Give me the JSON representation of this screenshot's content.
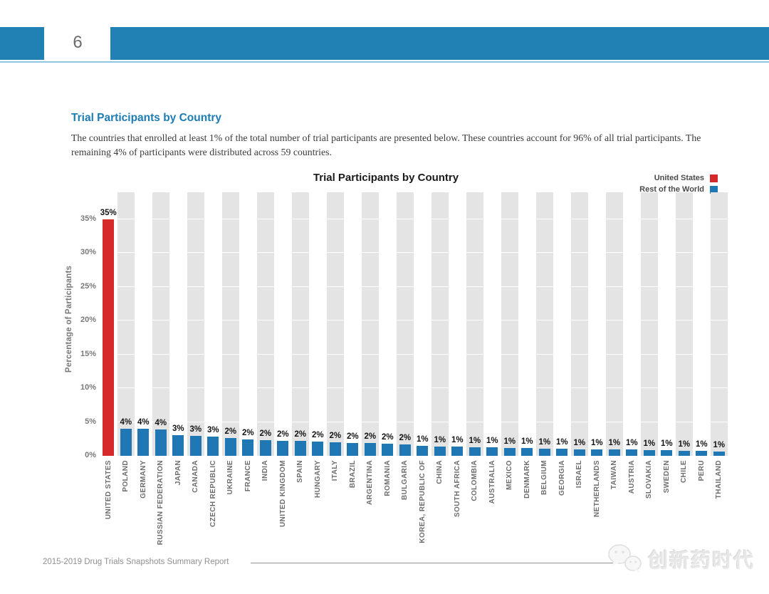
{
  "page": {
    "number": "6",
    "footer": "2015-2019 Drug Trials Snapshots Summary Report",
    "watermark_text": "创新药时代"
  },
  "intro": {
    "heading": "Trial Participants by Country",
    "body": "The countries that enrolled at least 1% of the total number of trial participants are presented below. These countries account for 96% of all trial participants. The remaining 4% of participants were distributed across 59 countries."
  },
  "colors": {
    "header_blue": "#2181b5",
    "heading_blue": "#1c7cb5",
    "us_red": "#d42a2b",
    "world_blue": "#1f77b4",
    "stripe_gray": "#e4e4e4"
  },
  "chart_data": {
    "type": "bar",
    "title": "Trial Participants by Country",
    "xlabel": "",
    "ylabel": "Percentage of Participants",
    "ylim": [
      0,
      39
    ],
    "yticks": [
      0,
      5,
      10,
      15,
      20,
      25,
      30,
      35
    ],
    "ytick_labels": [
      "0%",
      "5%",
      "10%",
      "15%",
      "20%",
      "25%",
      "30%",
      "35%"
    ],
    "grid": "white horizontal gridlines over alternating light-gray column stripes",
    "legend_position": "top-right",
    "legend": [
      {
        "label": "United States",
        "color": "#d42a2b"
      },
      {
        "label": "Rest of the World",
        "color": "#1f77b4"
      }
    ],
    "categories": [
      "UNITED STATES",
      "POLAND",
      "GERMANY",
      "RUSSIAN FEDERATION",
      "JAPAN",
      "CANADA",
      "CZECH REPUBLIC",
      "UKRAINE",
      "FRANCE",
      "INDIA",
      "UNITED KINGDOM",
      "SPAIN",
      "HUNGARY",
      "ITALY",
      "BRAZIL",
      "ARGENTINA",
      "ROMANIA",
      "BULGARIA",
      "KOREA, REPUBLIC OF",
      "CHINA",
      "SOUTH AFRICA",
      "COLOMBIA",
      "AUSTRALIA",
      "MEXICO",
      "DENMARK",
      "BELGIUM",
      "GEORGIA",
      "ISRAEL",
      "NETHERLANDS",
      "TAIWAN",
      "AUSTRIA",
      "SLOVAKIA",
      "SWEDEN",
      "CHILE",
      "PERU",
      "THAILAND"
    ],
    "values": [
      35,
      4,
      4,
      4,
      3,
      3,
      3,
      2,
      2,
      2,
      2,
      2,
      2,
      2,
      2,
      2,
      2,
      2,
      1,
      1,
      1,
      1,
      1,
      1,
      1,
      1,
      1,
      1,
      1,
      1,
      1,
      1,
      1,
      1,
      1,
      1
    ],
    "bar_labels": [
      "35%",
      "4%",
      "4%",
      "4%",
      "3%",
      "3%",
      "3%",
      "2%",
      "2%",
      "2%",
      "2%",
      "2%",
      "2%",
      "2%",
      "2%",
      "2%",
      "2%",
      "2%",
      "1%",
      "1%",
      "1%",
      "1%",
      "1%",
      "1%",
      "1%",
      "1%",
      "1%",
      "1%",
      "1%",
      "1%",
      "1%",
      "1%",
      "1%",
      "1%",
      "1%",
      "1%"
    ],
    "bar_heights_est": [
      35,
      4.0,
      4.0,
      3.9,
      3.1,
      3.0,
      2.8,
      2.6,
      2.4,
      2.3,
      2.25,
      2.2,
      2.1,
      2.0,
      1.9,
      1.85,
      1.8,
      1.7,
      1.45,
      1.4,
      1.35,
      1.3,
      1.25,
      1.2,
      1.15,
      1.1,
      1.05,
      1.0,
      1.0,
      0.95,
      0.9,
      0.85,
      0.8,
      0.75,
      0.7,
      0.6
    ],
    "bar_colors_rule": "first bar (United States) red, all others blue"
  }
}
